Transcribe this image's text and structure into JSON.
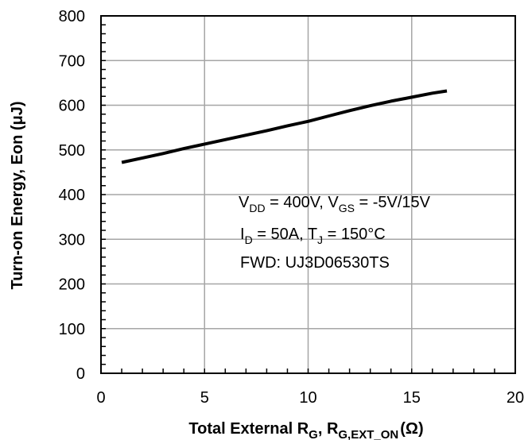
{
  "chart_data": {
    "type": "line",
    "title": "",
    "xlabel": "Total External R_G, R_G,EXT_ON (Ω)",
    "ylabel": "Turn-on Energy, Eon (μJ)",
    "xlim": [
      0,
      20
    ],
    "ylim": [
      0,
      800
    ],
    "x_ticks": [
      0,
      5,
      10,
      15,
      20
    ],
    "y_ticks": [
      0,
      100,
      200,
      300,
      400,
      500,
      600,
      700,
      800
    ],
    "x_tick_labels": [
      "0",
      "5",
      "10",
      "15",
      "20"
    ],
    "y_tick_labels": [
      "0",
      "100",
      "200",
      "300",
      "400",
      "500",
      "600",
      "700",
      "800"
    ],
    "grid": true,
    "series": [
      {
        "x": [
          1,
          2,
          3,
          4,
          5,
          6,
          7,
          8,
          9,
          10,
          11,
          12,
          13,
          14,
          15,
          16,
          16.7
        ],
        "y": [
          472,
          482,
          492,
          503,
          513,
          523,
          533,
          543,
          554,
          564,
          576,
          588,
          599,
          609,
          618,
          627,
          632
        ],
        "color": "#000000"
      }
    ],
    "annotations": {
      "line1": {
        "V": "V",
        "DD": "DD",
        "mid": " = 400V, V",
        "GS": "GS",
        "tail": " = -5V/15V"
      },
      "line2": {
        "I": "I",
        "D": "D",
        "mid": " = 50A, T",
        "J": "J",
        "tail": " = 150°C"
      },
      "line3": "FWD: UJ3D06530TS"
    },
    "axis_title_parts": {
      "x": {
        "main": "Total External R",
        "sub1": "G",
        "sep": ", R",
        "sub2": "G,EXT_ON",
        "unit": "(Ω)"
      },
      "y": "Turn-on Energy, Eon (μJ)"
    }
  }
}
